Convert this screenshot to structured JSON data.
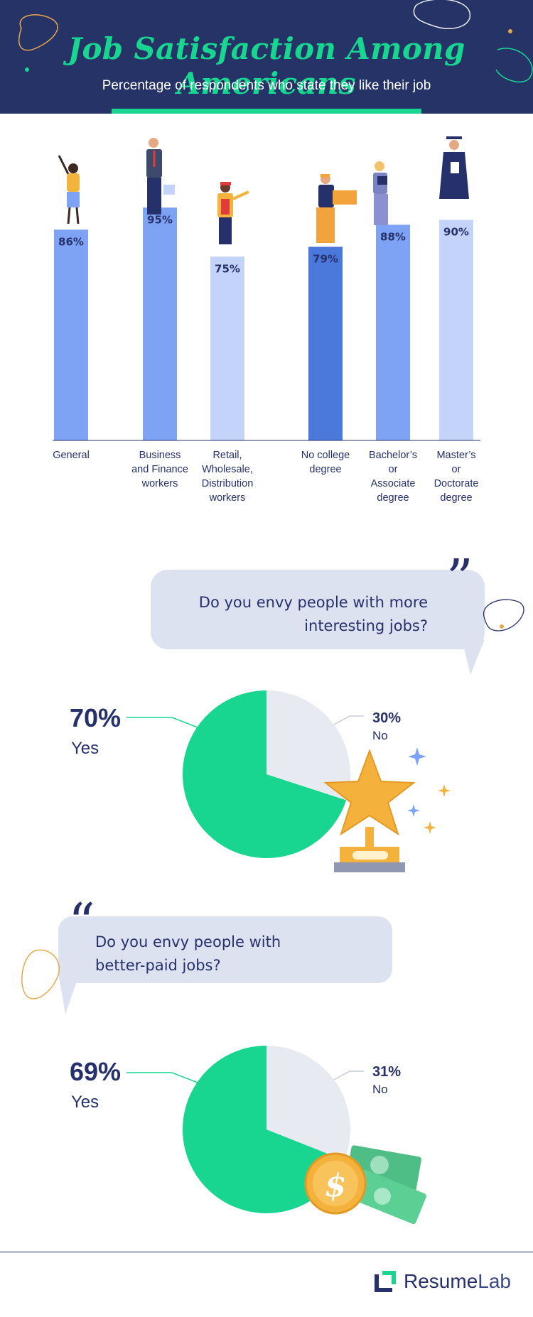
{
  "header": {
    "title": "Job Satisfaction Among Americans",
    "subtitle": "Percentage of respondents who state they like their job"
  },
  "colors": {
    "navy": "#253367",
    "green": "#18d690",
    "bar_mid": "#7ea2f4",
    "bar_light": "#c3d3fa",
    "bar_dark": "#4a78db",
    "pie_grey": "#e8eaf1",
    "bubble": "#dde2f1"
  },
  "chart_data": [
    {
      "type": "bar",
      "categories": [
        [
          "General"
        ],
        [
          "Business",
          "and Finance",
          "workers"
        ],
        [
          "Retail,",
          "Wholesale,",
          "Distribution",
          "workers"
        ],
        [
          "No college",
          "degree"
        ],
        [
          "Bachelor’s",
          "or",
          "Associate",
          "degree"
        ],
        [
          "Master’s",
          "or",
          "Doctorate",
          "degree"
        ]
      ],
      "values": [
        86,
        95,
        75,
        79,
        88,
        90
      ],
      "value_labels": [
        "86%",
        "95%",
        "75%",
        "79%",
        "88%",
        "90%"
      ],
      "bar_colors": [
        "#7ea2f4",
        "#7ea2f4",
        "#c3d3fa",
        "#4a78db",
        "#7ea2f4",
        "#c3d3fa"
      ],
      "ylim": [
        0,
        100
      ],
      "grid": false
    },
    {
      "type": "pie",
      "question": [
        "Do you envy people with more",
        "interesting jobs?"
      ],
      "slices": [
        {
          "label": "Yes",
          "value": 70,
          "display": "70%",
          "color": "#18d690"
        },
        {
          "label": "No",
          "value": 30,
          "display": "30%",
          "color": "#e8eaf1"
        }
      ]
    },
    {
      "type": "pie",
      "question": [
        "Do you envy people with",
        "better-paid jobs?"
      ],
      "slices": [
        {
          "label": "Yes",
          "value": 69,
          "display": "69%",
          "color": "#18d690"
        },
        {
          "label": "No",
          "value": 31,
          "display": "31%",
          "color": "#e8eaf1"
        }
      ]
    }
  ],
  "footer": {
    "brand_part1": "Resume",
    "brand_part2": "Lab",
    "logo_icon": "resumelab-logo-icon"
  },
  "icons": {
    "quote": "quote-icon",
    "trophy": "trophy-icon",
    "money": "money-icon",
    "coin": "dollar-coin-icon"
  }
}
